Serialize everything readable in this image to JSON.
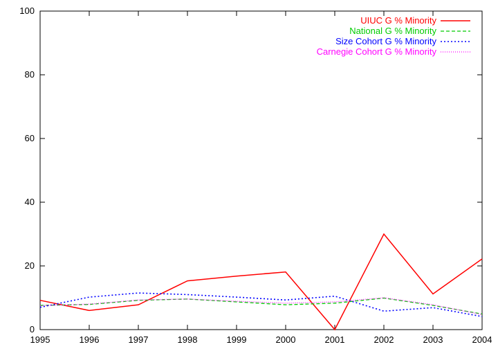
{
  "chart_data": {
    "type": "line",
    "title": "",
    "xlabel": "",
    "ylabel": "",
    "x": [
      1995,
      1996,
      1997,
      1998,
      1999,
      2000,
      2001,
      2002,
      2003,
      2004
    ],
    "xlim": [
      1995,
      2004
    ],
    "ylim": [
      0,
      100
    ],
    "yticks": [
      0,
      20,
      40,
      60,
      80,
      100
    ],
    "grid": false,
    "legend_position": "top-right",
    "series": [
      {
        "name": "UIUC G % Minority",
        "color": "#ff0000",
        "dash": "solid",
        "values": [
          9.2,
          6.0,
          7.8,
          15.3,
          16.8,
          18.1,
          0.0,
          30.0,
          11.2,
          22.2
        ]
      },
      {
        "name": "National G % Minority",
        "color": "#00cc00",
        "dash": "dashed",
        "values": [
          7.6,
          7.9,
          9.2,
          9.6,
          8.7,
          7.8,
          8.3,
          9.9,
          7.6,
          4.9
        ]
      },
      {
        "name": "Size Cohort G % Minority",
        "color": "#0000ff",
        "dash": "dotted",
        "values": [
          7.0,
          10.2,
          11.5,
          11.0,
          10.2,
          9.3,
          10.5,
          5.8,
          6.9,
          4.1
        ]
      },
      {
        "name": "Carnegie Cohort G % Minority",
        "color": "#ff00ff",
        "dash": "fine-dotted",
        "values": [
          7.5,
          8.0,
          9.3,
          9.6,
          8.9,
          8.3,
          8.7,
          10.0,
          7.8,
          4.7
        ]
      }
    ]
  }
}
